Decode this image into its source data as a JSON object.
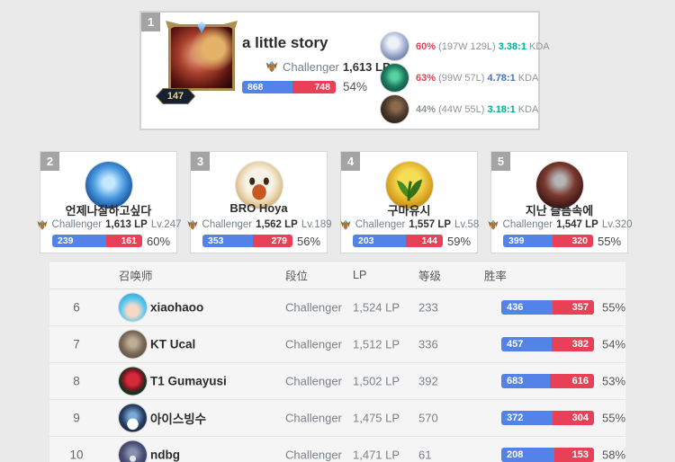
{
  "colors": {
    "win_blue": "#5383e8",
    "loss_red": "#e84057",
    "kda_teal": "#00af91",
    "kda_blue": "#4171d6",
    "muted_gray": "#8d9597",
    "badge_gray": "#a4a4a4"
  },
  "top_player": {
    "rank": "1",
    "level": "147",
    "name": "a little story",
    "tier": "Challenger",
    "lp": "1,613 LP",
    "wins": "868",
    "losses": "748",
    "winrate": "54%",
    "champions": [
      {
        "winrate": "60%",
        "winrate_color": "#e84057",
        "record": "(197W 129L)",
        "kda": "3.38:1",
        "kda_color": "#00af91",
        "kda_label": "KDA"
      },
      {
        "winrate": "63%",
        "winrate_color": "#e84057",
        "record": "(99W 57L)",
        "kda": "4.78:1",
        "kda_color": "#4171d6",
        "kda_label": "KDA"
      },
      {
        "winrate": "44%",
        "winrate_color": "#8d9597",
        "record": "(44W 55L)",
        "kda": "3.18:1",
        "kda_color": "#00af91",
        "kda_label": "KDA"
      }
    ]
  },
  "cards": [
    {
      "rank": "2",
      "name": "언제나잘하고싶다",
      "tier": "Challenger",
      "lp": "1,613 LP",
      "level_label": "Lv.247",
      "wins": "239",
      "losses": "161",
      "winrate": "60%"
    },
    {
      "rank": "3",
      "name": "BRO Hoya",
      "tier": "Challenger",
      "lp": "1,562 LP",
      "level_label": "Lv.189",
      "wins": "353",
      "losses": "279",
      "winrate": "56%"
    },
    {
      "rank": "4",
      "name": "구마유시",
      "tier": "Challenger",
      "lp": "1,557 LP",
      "level_label": "Lv.58",
      "wins": "203",
      "losses": "144",
      "winrate": "59%"
    },
    {
      "rank": "5",
      "name": "지난 슬픔속에",
      "tier": "Challenger",
      "lp": "1,547 LP",
      "level_label": "Lv.320",
      "wins": "399",
      "losses": "320",
      "winrate": "55%"
    }
  ],
  "table": {
    "headers": {
      "summoner": "召唤师",
      "tier": "段位",
      "lp": "LP",
      "level": "等级",
      "winrate": "胜率"
    },
    "rows": [
      {
        "rank": "6",
        "name": "xiaohaoo",
        "tier": "Challenger",
        "lp": "1,524 LP",
        "level": "233",
        "wins": "436",
        "losses": "357",
        "winrate": "55%"
      },
      {
        "rank": "7",
        "name": "KT Ucal",
        "tier": "Challenger",
        "lp": "1,512 LP",
        "level": "336",
        "wins": "457",
        "losses": "382",
        "winrate": "54%"
      },
      {
        "rank": "8",
        "name": "T1 Gumayusi",
        "tier": "Challenger",
        "lp": "1,502 LP",
        "level": "392",
        "wins": "683",
        "losses": "616",
        "winrate": "53%"
      },
      {
        "rank": "9",
        "name": "아이스빙수",
        "tier": "Challenger",
        "lp": "1,475 LP",
        "level": "570",
        "wins": "372",
        "losses": "304",
        "winrate": "55%"
      },
      {
        "rank": "10",
        "name": "ndbg",
        "tier": "Challenger",
        "lp": "1,471 LP",
        "level": "61",
        "wins": "208",
        "losses": "153",
        "winrate": "58%"
      }
    ]
  }
}
